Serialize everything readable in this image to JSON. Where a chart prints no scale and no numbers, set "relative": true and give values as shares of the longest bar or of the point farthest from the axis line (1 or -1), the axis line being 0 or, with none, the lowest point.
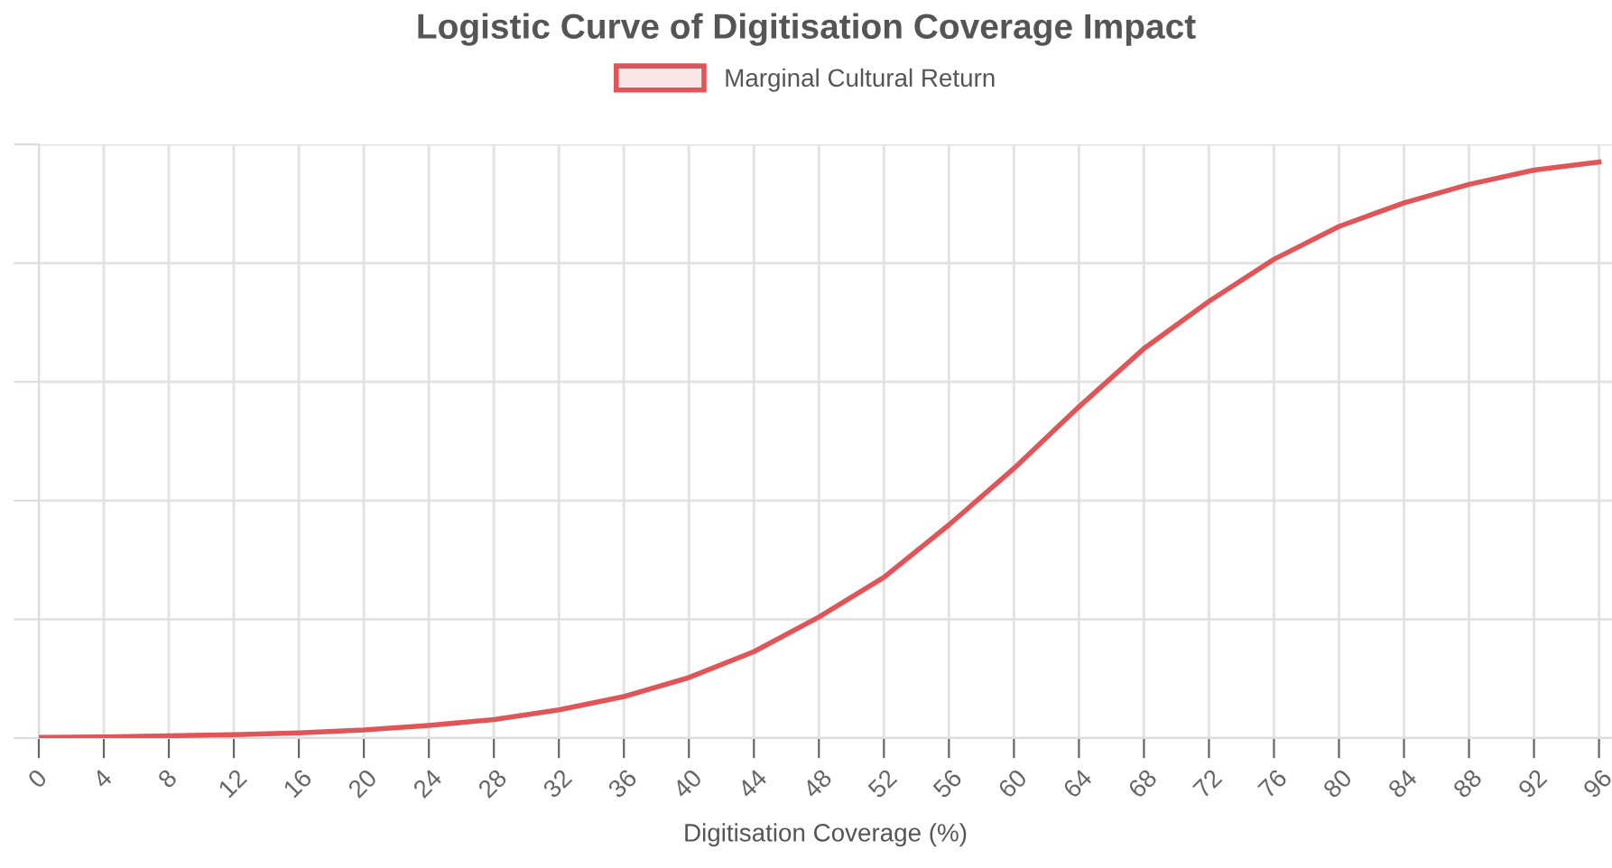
{
  "chart_data": {
    "type": "line",
    "title": "Logistic Curve of Digitisation Coverage Impact",
    "xlabel": "Digitisation Coverage (%)",
    "x": [
      0,
      4,
      8,
      12,
      16,
      20,
      24,
      28,
      32,
      36,
      40,
      44,
      48,
      52,
      56,
      60,
      64,
      68,
      72,
      76,
      80,
      84,
      88,
      92,
      96
    ],
    "series": [
      {
        "name": "Marginal Cultural Return",
        "color": "#e05558",
        "values": [
          0.001,
          0.002,
          0.004,
          0.006,
          0.009,
          0.014,
          0.022,
          0.032,
          0.049,
          0.072,
          0.105,
          0.15,
          0.21,
          0.279,
          0.37,
          0.468,
          0.575,
          0.676,
          0.758,
          0.831,
          0.888,
          0.929,
          0.961,
          0.986,
          1
        ]
      }
    ],
    "relative": true,
    "xlim": [
      0,
      96.8
    ],
    "xticks": [
      0,
      4,
      8,
      12,
      16,
      20,
      24,
      28,
      32,
      36,
      40,
      44,
      48,
      52,
      56,
      60,
      64,
      68,
      72,
      76,
      80,
      84,
      88,
      92,
      96
    ],
    "grid": true,
    "legend": "top",
    "tick_labels": "x",
    "marker": "none",
    "line_style": "solid"
  }
}
